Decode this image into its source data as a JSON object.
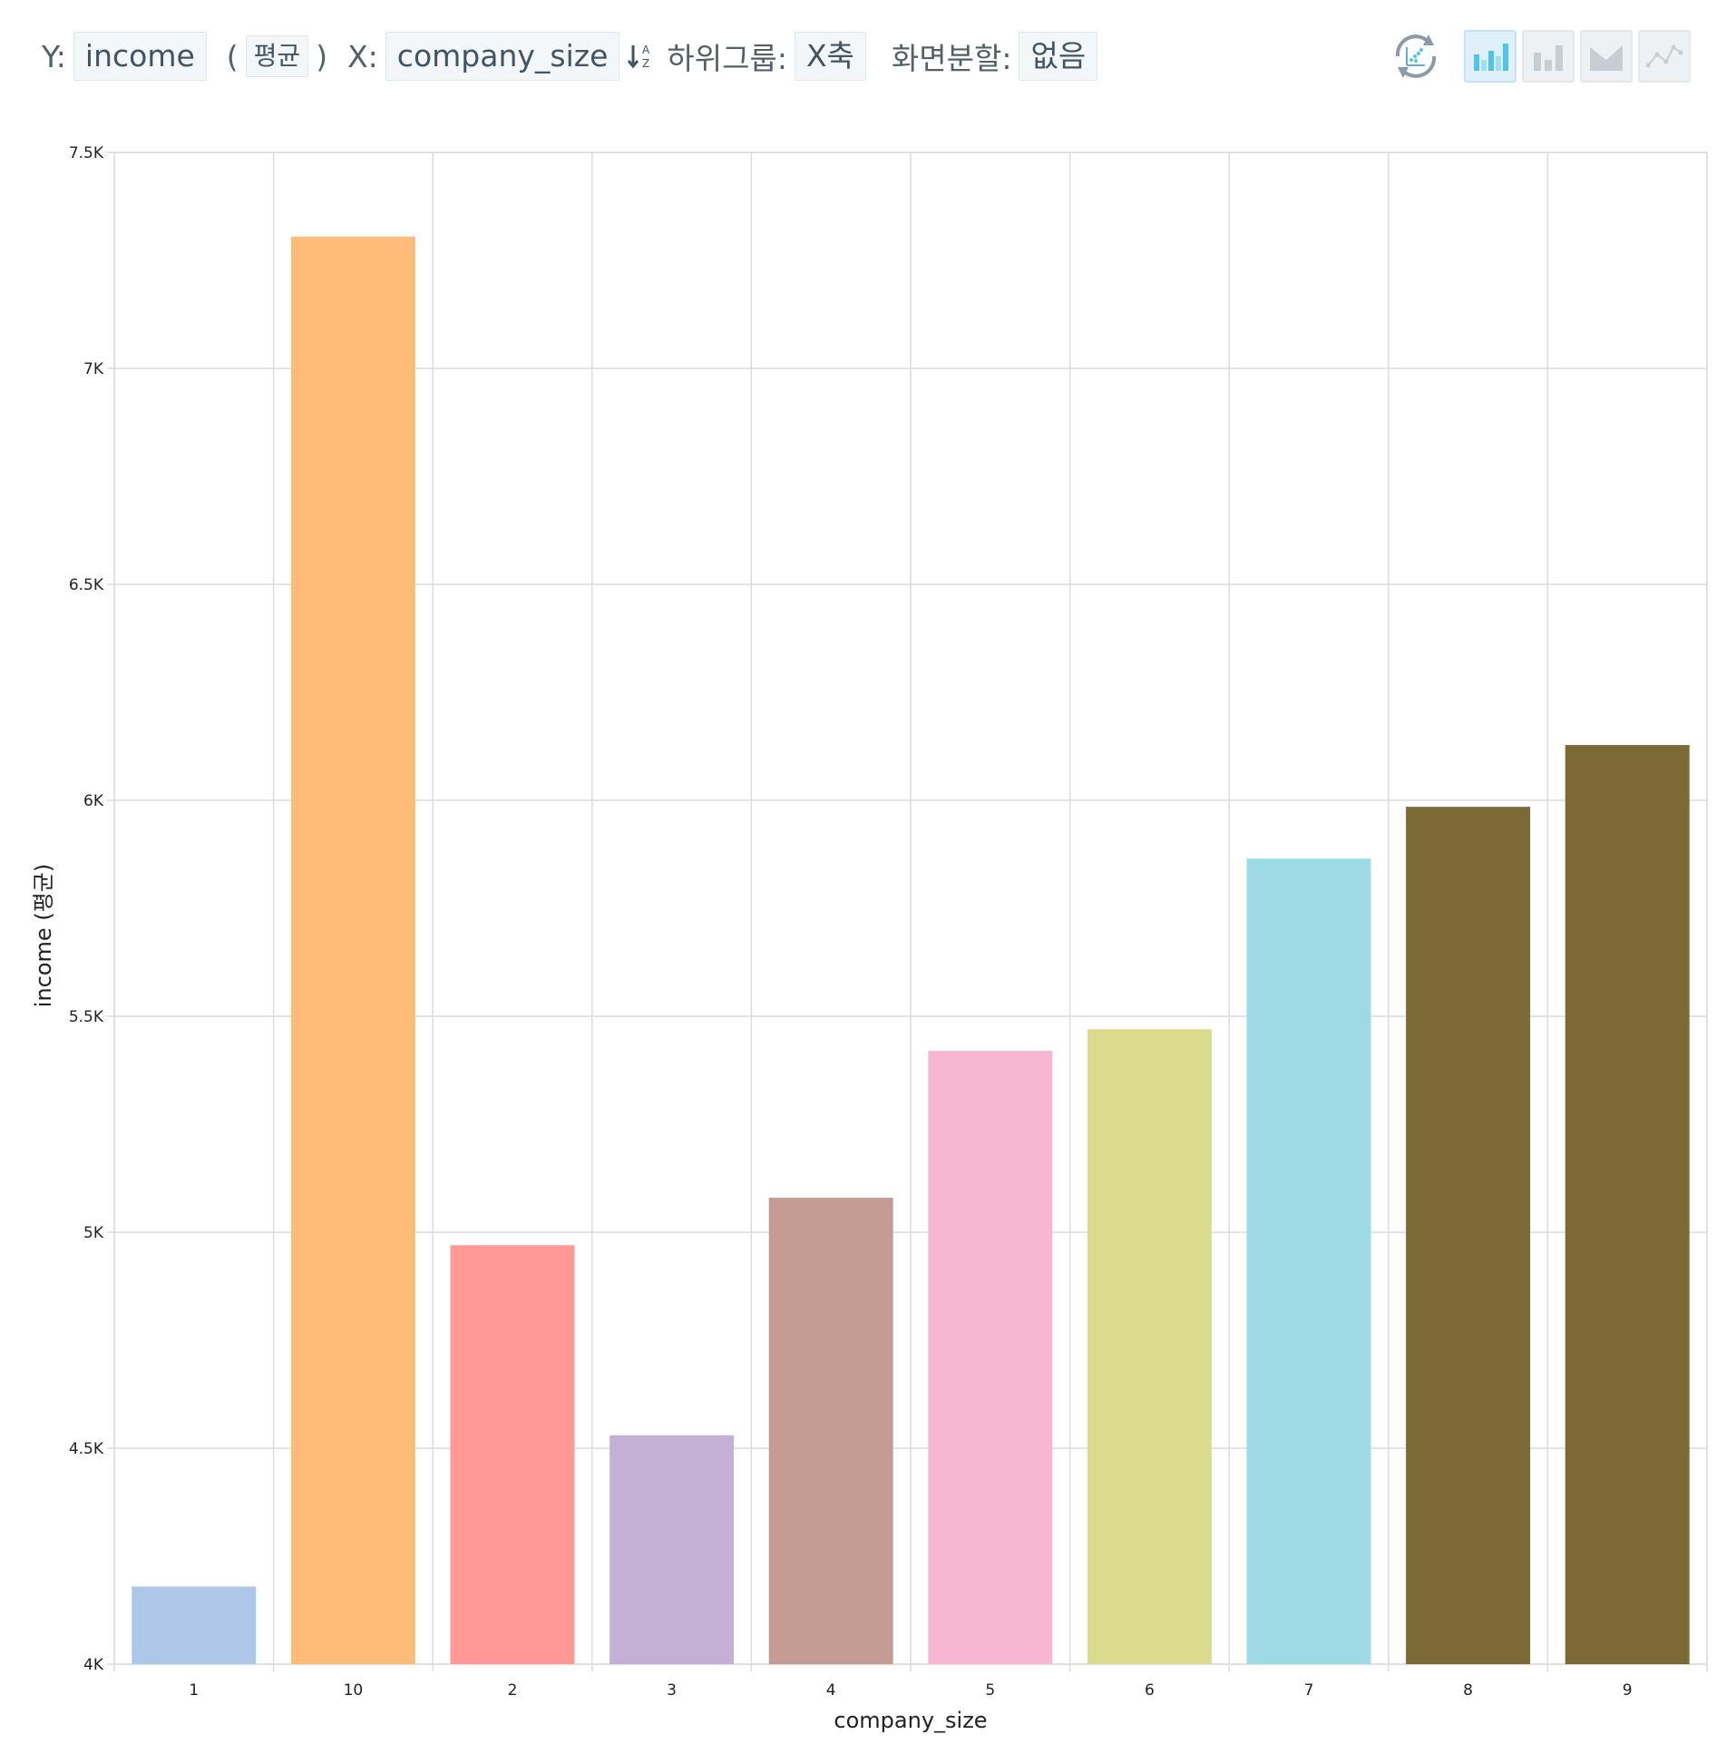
{
  "toolbar": {
    "y_label": "Y:",
    "y_field": "income",
    "paren_open": "(",
    "aggregation": "평균",
    "paren_close": ")",
    "x_label": "X:",
    "x_field": "company_size",
    "subgroup_label": "하위그룹:",
    "subgroup_value": "X축",
    "split_label": "화면분할:",
    "split_value": "없음"
  },
  "icons": {
    "sort": "sort-alpha-icon",
    "refresh": "refresh-scatter-icon",
    "chart_types": [
      "bar-chart-icon",
      "bar-chart-gray-icon",
      "area-chart-icon",
      "line-chart-icon"
    ],
    "active_chart_type": "bar-chart-icon",
    "accent_color": "#4fc3e8"
  },
  "chart_data": {
    "type": "bar",
    "categories": [
      "1",
      "10",
      "2",
      "3",
      "4",
      "5",
      "6",
      "7",
      "8",
      "9"
    ],
    "values": [
      4180,
      7305,
      4970,
      4530,
      5080,
      5420,
      5470,
      5865,
      5985,
      6128
    ],
    "colors": [
      "#aec7e8",
      "#ffbb78",
      "#ff9896",
      "#c5b0d5",
      "#c49c94",
      "#f7b6d2",
      "#dbdb8d",
      "#9edae5",
      "#7b6a35",
      "#7b6a35"
    ],
    "xlabel": "company_size",
    "ylabel": "income (평균)",
    "ylim": [
      4000,
      7500
    ],
    "yticks": [
      4000,
      4500,
      5000,
      5500,
      6000,
      6500,
      7000,
      7500
    ],
    "ytick_labels": [
      "4K",
      "4.5K",
      "5K",
      "5.5K",
      "6K",
      "6.5K",
      "7K",
      "7.5K"
    ],
    "grid": true,
    "legend": "none"
  }
}
